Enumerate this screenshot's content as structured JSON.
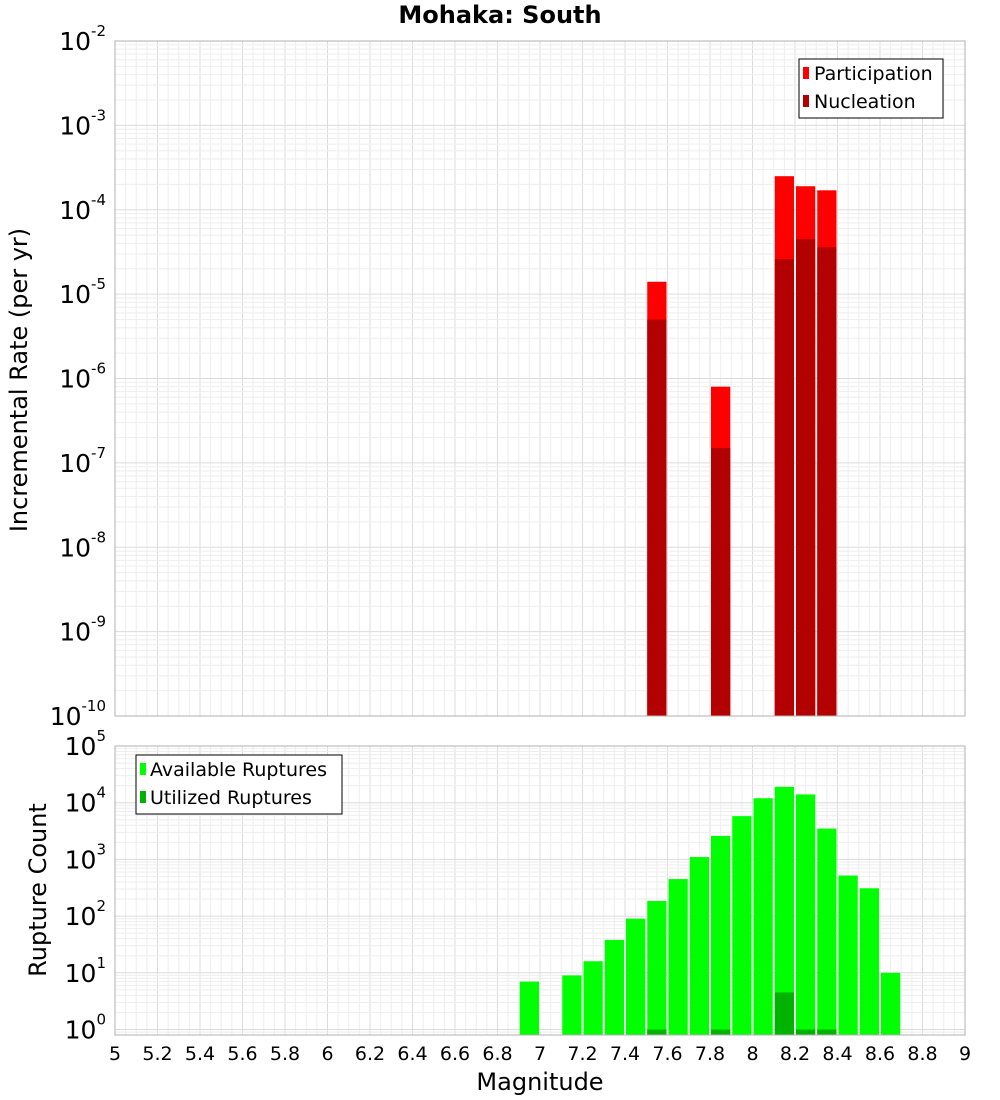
{
  "chart_data": [
    {
      "type": "bar",
      "title": "Mohaka: South",
      "xlabel": "Magnitude",
      "ylabel": "Incremental Rate (per yr)",
      "yscale": "log",
      "xlim": [
        5,
        9
      ],
      "ylim": [
        1e-10,
        0.01
      ],
      "bin_width": 0.1,
      "grid": true,
      "legend_position": "top-right",
      "xticks": [
        "5",
        "5.2",
        "5.4",
        "5.6",
        "5.8",
        "6",
        "6.2",
        "6.4",
        "6.6",
        "6.8",
        "7",
        "7.2",
        "7.4",
        "7.6",
        "7.8",
        "8",
        "8.2",
        "8.4",
        "8.6",
        "8.8",
        "9"
      ],
      "ytick_exponents": [
        "-10",
        "-9",
        "-8",
        "-7",
        "-6",
        "-5",
        "-4",
        "-3",
        "-2"
      ],
      "ytick_base": "10",
      "series": [
        {
          "name": "Participation",
          "color": "#ff0000",
          "points": [
            {
              "x": 7.55,
              "y": 1.4e-05
            },
            {
              "x": 7.85,
              "y": 8e-07
            },
            {
              "x": 8.15,
              "y": 0.00025
            },
            {
              "x": 8.25,
              "y": 0.00019
            },
            {
              "x": 8.35,
              "y": 0.00017
            }
          ]
        },
        {
          "name": "Nucleation",
          "color": "#b30000",
          "points": [
            {
              "x": 7.55,
              "y": 5e-06
            },
            {
              "x": 7.85,
              "y": 1.5e-07
            },
            {
              "x": 8.15,
              "y": 2.6e-05
            },
            {
              "x": 8.25,
              "y": 4.5e-05
            },
            {
              "x": 8.35,
              "y": 3.6e-05
            }
          ]
        }
      ]
    },
    {
      "type": "bar",
      "title": "",
      "xlabel": "Magnitude",
      "ylabel": "Rupture Count",
      "yscale": "log",
      "xlim": [
        5,
        9
      ],
      "ylim": [
        0.8,
        100000.0
      ],
      "bin_width": 0.1,
      "grid": true,
      "legend_position": "top-left",
      "ytick_exponents": [
        "0",
        "1",
        "2",
        "3",
        "4",
        "5"
      ],
      "ytick_base": "10",
      "series": [
        {
          "name": "Available Ruptures",
          "color": "#00ff00",
          "points": [
            {
              "x": 6.95,
              "y": 7
            },
            {
              "x": 7.15,
              "y": 9
            },
            {
              "x": 7.25,
              "y": 16
            },
            {
              "x": 7.35,
              "y": 38
            },
            {
              "x": 7.45,
              "y": 90
            },
            {
              "x": 7.55,
              "y": 185
            },
            {
              "x": 7.65,
              "y": 450
            },
            {
              "x": 7.75,
              "y": 1100
            },
            {
              "x": 7.85,
              "y": 2600
            },
            {
              "x": 7.95,
              "y": 5800
            },
            {
              "x": 8.05,
              "y": 12000
            },
            {
              "x": 8.15,
              "y": 19000
            },
            {
              "x": 8.25,
              "y": 14000
            },
            {
              "x": 8.35,
              "y": 3500
            },
            {
              "x": 8.45,
              "y": 520
            },
            {
              "x": 8.55,
              "y": 310
            },
            {
              "x": 8.65,
              "y": 10
            }
          ]
        },
        {
          "name": "Utilized Ruptures",
          "color": "#00b300",
          "points": [
            {
              "x": 7.55,
              "y": 1
            },
            {
              "x": 7.85,
              "y": 1
            },
            {
              "x": 8.15,
              "y": 4.5
            },
            {
              "x": 8.25,
              "y": 1
            },
            {
              "x": 8.35,
              "y": 1
            }
          ]
        }
      ]
    }
  ]
}
